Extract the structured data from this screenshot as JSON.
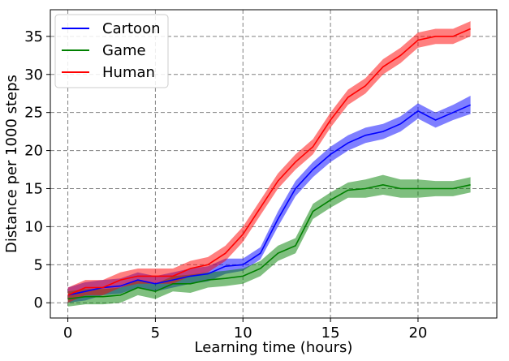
{
  "chart_data": {
    "type": "line",
    "xlabel": "Learning time (hours)",
    "ylabel": "Distance per 1000 steps",
    "xlim": [
      -1,
      24.5
    ],
    "ylim": [
      -2,
      38.5
    ],
    "xticks": [
      0,
      5,
      10,
      15,
      20
    ],
    "yticks": [
      0,
      5,
      10,
      15,
      20,
      25,
      30,
      35
    ],
    "grid": true,
    "legend_position": "top-left",
    "x": [
      0,
      1,
      2,
      3,
      4,
      5,
      6,
      7,
      8,
      9,
      10,
      11,
      12,
      13,
      14,
      15,
      16,
      17,
      18,
      19,
      20,
      21,
      22,
      23
    ],
    "series": [
      {
        "name": "Cartoon",
        "color": "#0000ff",
        "values": [
          1.0,
          1.5,
          2.0,
          2.2,
          3.0,
          2.5,
          3.0,
          3.5,
          3.8,
          4.8,
          5.0,
          6.5,
          11.0,
          15.0,
          17.5,
          19.5,
          21.0,
          22.0,
          22.5,
          23.5,
          25.2,
          24.0,
          25.0,
          26.0
        ],
        "band": [
          1.0,
          1.2,
          1.0,
          1.0,
          1.0,
          1.0,
          1.0,
          1.0,
          1.0,
          1.0,
          0.8,
          0.8,
          1.0,
          1.0,
          1.0,
          1.0,
          1.0,
          1.0,
          1.0,
          1.0,
          1.0,
          1.0,
          1.0,
          1.2
        ]
      },
      {
        "name": "Game",
        "color": "#008000",
        "values": [
          0.5,
          0.8,
          0.8,
          1.0,
          2.0,
          1.5,
          2.5,
          2.5,
          3.0,
          3.2,
          3.5,
          4.5,
          6.5,
          7.5,
          12.0,
          13.5,
          14.8,
          15.0,
          15.5,
          15.0,
          15.0,
          15.0,
          15.0,
          15.5
        ],
        "band": [
          1.0,
          1.0,
          1.0,
          1.0,
          1.0,
          1.0,
          1.0,
          1.2,
          1.0,
          1.0,
          1.0,
          1.0,
          1.0,
          1.0,
          1.0,
          1.0,
          1.0,
          1.2,
          1.3,
          1.2,
          1.2,
          1.0,
          1.0,
          1.0
        ]
      },
      {
        "name": "Human",
        "color": "#ff0000",
        "values": [
          1.0,
          2.0,
          2.0,
          3.0,
          3.5,
          3.5,
          3.5,
          4.5,
          5.0,
          6.5,
          9.0,
          12.5,
          16.0,
          18.5,
          20.5,
          24.0,
          27.0,
          28.5,
          31.0,
          32.5,
          34.5,
          35.0,
          35.0,
          36.0
        ],
        "band": [
          1.0,
          1.0,
          1.0,
          1.0,
          1.0,
          1.0,
          1.0,
          1.0,
          1.0,
          1.0,
          1.0,
          1.0,
          1.0,
          1.0,
          1.0,
          1.0,
          1.0,
          1.0,
          1.0,
          1.0,
          1.0,
          1.0,
          1.0,
          1.0
        ]
      }
    ]
  }
}
